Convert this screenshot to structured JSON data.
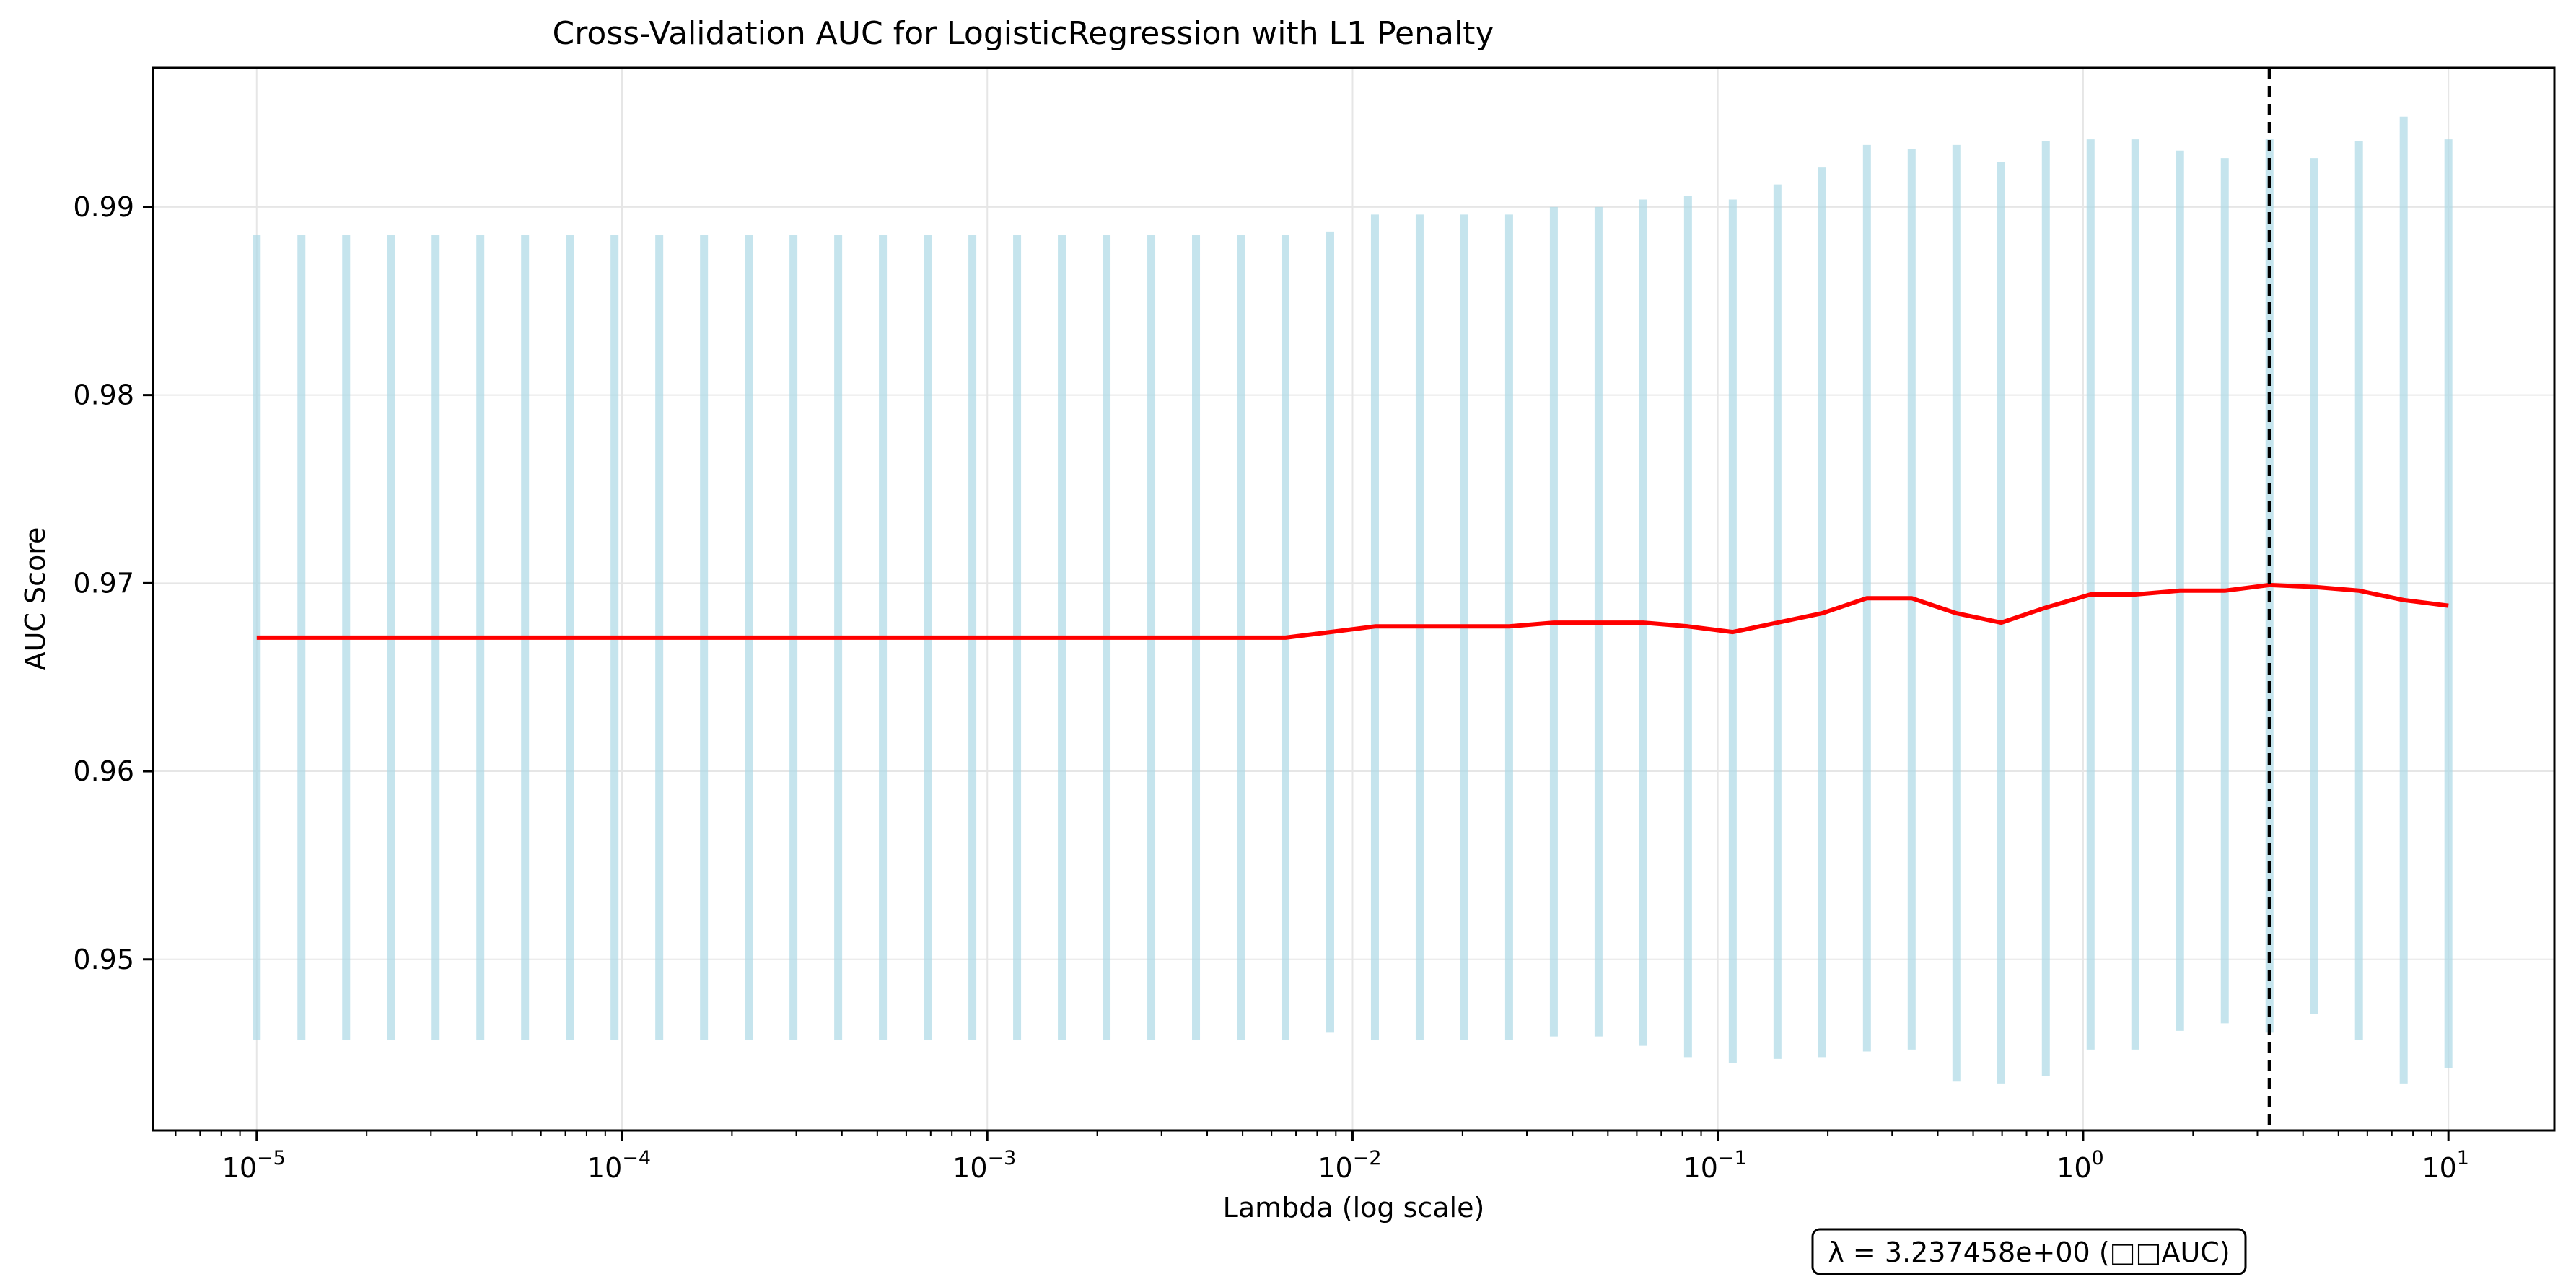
{
  "chart_data": {
    "type": "line",
    "title": "Cross-Validation AUC for LogisticRegression with L1 Penalty",
    "xlabel": "Lambda (log scale)",
    "ylabel": "AUC Score",
    "xscale": "log",
    "xlim": [
      5.2e-06,
      19.5
    ],
    "ylim": [
      0.9409,
      0.9974
    ],
    "grid": true,
    "x_tick_values": [
      1e-05,
      0.0001,
      0.001,
      0.01,
      0.1,
      1,
      10
    ],
    "x_tick_labels": [
      {
        "base": "10",
        "exp": "−5"
      },
      {
        "base": "10",
        "exp": "−4"
      },
      {
        "base": "10",
        "exp": "−3"
      },
      {
        "base": "10",
        "exp": "−2"
      },
      {
        "base": "10",
        "exp": "−1"
      },
      {
        "base": "10",
        "exp": "0"
      },
      {
        "base": "10",
        "exp": "1"
      }
    ],
    "y_ticks": [
      0.95,
      0.96,
      0.97,
      0.98,
      0.99
    ],
    "y_tick_labels": [
      "0.95",
      "0.96",
      "0.97",
      "0.98",
      "0.99"
    ],
    "lambda_range": {
      "start": 1e-05,
      "stop": 10,
      "count": 50
    },
    "mean_auc": [
      0.9671,
      0.9671,
      0.9671,
      0.9671,
      0.9671,
      0.9671,
      0.9671,
      0.9671,
      0.9671,
      0.9671,
      0.9671,
      0.9671,
      0.9671,
      0.9671,
      0.9671,
      0.9671,
      0.9671,
      0.9671,
      0.9671,
      0.9671,
      0.9671,
      0.9671,
      0.9671,
      0.9671,
      0.9674,
      0.9677,
      0.9677,
      0.9677,
      0.9677,
      0.9679,
      0.9679,
      0.9679,
      0.9677,
      0.9674,
      0.9679,
      0.9684,
      0.9692,
      0.9692,
      0.9684,
      0.9679,
      0.9687,
      0.9694,
      0.9694,
      0.9696,
      0.9696,
      0.9699,
      0.9698,
      0.9696,
      0.9691,
      0.9688
    ],
    "auc_upper": [
      0.9885,
      0.9885,
      0.9885,
      0.9885,
      0.9885,
      0.9885,
      0.9885,
      0.9885,
      0.9885,
      0.9885,
      0.9885,
      0.9885,
      0.9885,
      0.9885,
      0.9885,
      0.9885,
      0.9885,
      0.9885,
      0.9885,
      0.9885,
      0.9885,
      0.9885,
      0.9885,
      0.9885,
      0.9887,
      0.9896,
      0.9896,
      0.9896,
      0.9896,
      0.99,
      0.99,
      0.9904,
      0.9906,
      0.9904,
      0.9912,
      0.9921,
      0.9933,
      0.9931,
      0.9933,
      0.9924,
      0.9935,
      0.9936,
      0.9936,
      0.993,
      0.9926,
      0.9936,
      0.9926,
      0.9935,
      0.9948,
      0.9936
    ],
    "auc_lower": [
      0.9457,
      0.9457,
      0.9457,
      0.9457,
      0.9457,
      0.9457,
      0.9457,
      0.9457,
      0.9457,
      0.9457,
      0.9457,
      0.9457,
      0.9457,
      0.9457,
      0.9457,
      0.9457,
      0.9457,
      0.9457,
      0.9457,
      0.9457,
      0.9457,
      0.9457,
      0.9457,
      0.9457,
      0.9461,
      0.9457,
      0.9457,
      0.9457,
      0.9457,
      0.9459,
      0.9459,
      0.9454,
      0.9448,
      0.9445,
      0.9447,
      0.9448,
      0.9451,
      0.9452,
      0.9435,
      0.9434,
      0.9438,
      0.9452,
      0.9452,
      0.9462,
      0.9466,
      0.9461,
      0.9471,
      0.9457,
      0.9434,
      0.9442
    ],
    "best_lambda": 3.237458,
    "best_lambda_label": "λ = 3.237458e+00 (□□AUC)",
    "colors": {
      "mean_line": "#ff0000",
      "error_bars": "#add8e6",
      "best_line": "#000000",
      "grid": "#e6e6e6"
    }
  }
}
